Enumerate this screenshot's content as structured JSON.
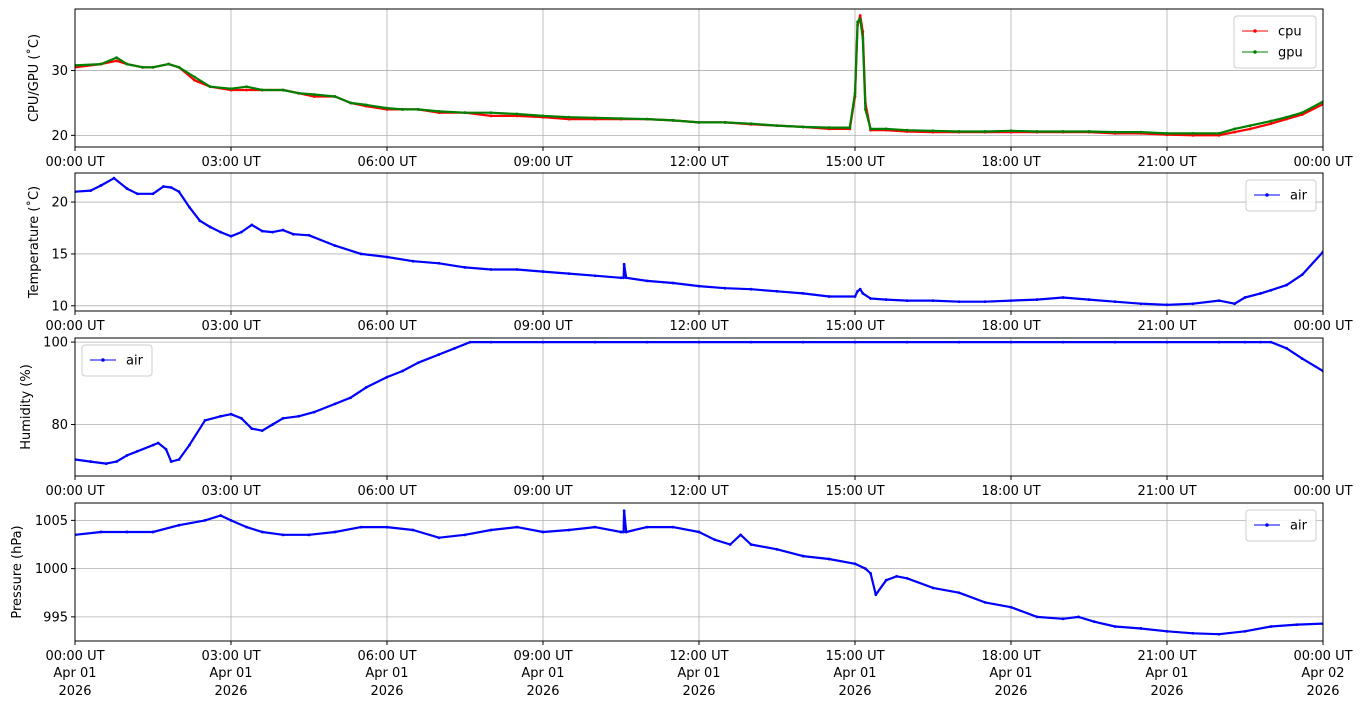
{
  "colors": {
    "cpu": "#ff0000",
    "gpu": "#008000",
    "air": "#0000ff",
    "grid": "#b0b0b0"
  },
  "chart_data": [
    {
      "type": "line",
      "ylabel": "CPU/GPU (˚C)",
      "ylim": [
        18.2,
        39.5
      ],
      "yticks": [
        20,
        30
      ],
      "grid": true,
      "legend_position": "top-right",
      "x_unit": "hours",
      "xlim": [
        0,
        24
      ],
      "series": [
        {
          "name": "cpu",
          "color": "#ff0000",
          "x": [
            0,
            0.5,
            0.8,
            1,
            1.3,
            1.5,
            1.8,
            2,
            2.3,
            2.6,
            3,
            3.3,
            3.6,
            4,
            4.3,
            4.6,
            5,
            5.3,
            5.6,
            6,
            6.3,
            6.6,
            7,
            7.5,
            8,
            8.5,
            9,
            9.5,
            10,
            10.5,
            11,
            11.5,
            12,
            12.5,
            13,
            13.5,
            14,
            14.5,
            14.9,
            15.0,
            15.05,
            15.1,
            15.15,
            15.2,
            15.3,
            15.6,
            16,
            16.5,
            17,
            17.5,
            18,
            18.5,
            19,
            19.5,
            20,
            20.5,
            21,
            21.5,
            22,
            22.3,
            22.6,
            23,
            23.3,
            23.6,
            24
          ],
          "y": [
            30.5,
            31,
            31.5,
            31,
            30.5,
            30.5,
            31,
            30.5,
            28.5,
            27.5,
            27,
            27,
            27,
            27,
            26.5,
            26,
            26,
            25,
            24.5,
            24,
            24,
            24,
            23.5,
            23.5,
            23,
            23,
            22.8,
            22.5,
            22.5,
            22.5,
            22.5,
            22.3,
            22,
            22,
            21.7,
            21.5,
            21.3,
            21,
            21,
            26,
            37,
            38.5,
            36,
            25,
            20.8,
            20.8,
            20.6,
            20.5,
            20.5,
            20.5,
            20.5,
            20.5,
            20.5,
            20.5,
            20.3,
            20.3,
            20.1,
            20,
            20,
            20.5,
            21,
            21.8,
            22.5,
            23.2,
            24.8
          ]
        },
        {
          "name": "gpu",
          "color": "#008000",
          "x": [
            0,
            0.5,
            0.8,
            1,
            1.3,
            1.5,
            1.8,
            2,
            2.3,
            2.6,
            3,
            3.3,
            3.6,
            4,
            4.3,
            4.6,
            5,
            5.3,
            5.6,
            6,
            6.3,
            6.6,
            7,
            7.5,
            8,
            8.5,
            9,
            9.5,
            10,
            10.5,
            11,
            11.5,
            12,
            12.5,
            13,
            13.5,
            14,
            14.5,
            14.9,
            15.0,
            15.05,
            15.1,
            15.15,
            15.2,
            15.3,
            15.6,
            16,
            16.5,
            17,
            17.5,
            18,
            18.5,
            19,
            19.5,
            20,
            20.5,
            21,
            21.5,
            22,
            22.3,
            22.6,
            23,
            23.3,
            23.6,
            24
          ],
          "y": [
            30.8,
            31,
            32,
            31,
            30.5,
            30.5,
            31,
            30.5,
            29,
            27.5,
            27.2,
            27.5,
            27,
            27,
            26.5,
            26.3,
            26,
            25,
            24.7,
            24.2,
            24,
            24,
            23.7,
            23.5,
            23.5,
            23.3,
            23,
            22.8,
            22.7,
            22.6,
            22.5,
            22.3,
            22,
            22,
            21.8,
            21.5,
            21.3,
            21.2,
            21.2,
            26.5,
            37.5,
            38,
            35,
            24,
            21,
            21,
            20.8,
            20.7,
            20.6,
            20.6,
            20.7,
            20.6,
            20.6,
            20.6,
            20.5,
            20.5,
            20.3,
            20.3,
            20.3,
            21,
            21.5,
            22.2,
            22.8,
            23.5,
            25.2
          ]
        }
      ]
    },
    {
      "type": "line",
      "ylabel": "Temperature (˚C)",
      "ylim": [
        9.5,
        22.8
      ],
      "yticks": [
        10,
        15,
        20
      ],
      "grid": true,
      "legend_position": "top-right",
      "x_unit": "hours",
      "xlim": [
        0,
        24
      ],
      "series": [
        {
          "name": "air",
          "color": "#0000ff",
          "x": [
            0,
            0.3,
            0.5,
            0.75,
            1,
            1.2,
            1.5,
            1.7,
            1.85,
            2,
            2.2,
            2.4,
            2.6,
            2.8,
            3,
            3.2,
            3.4,
            3.6,
            3.8,
            4,
            4.2,
            4.5,
            5,
            5.5,
            6,
            6.5,
            7,
            7.5,
            8,
            8.5,
            9,
            9.5,
            10,
            10.5,
            10.55,
            10.56,
            10.6,
            11,
            11.5,
            12,
            12.5,
            13,
            13.5,
            14,
            14.5,
            15,
            15.05,
            15.1,
            15.15,
            15.3,
            15.6,
            16,
            16.5,
            17,
            17.5,
            18,
            18.5,
            19,
            19.5,
            20,
            20.5,
            21,
            21.5,
            22,
            22.3,
            22.5,
            22.8,
            23,
            23.3,
            23.6,
            24
          ],
          "y": [
            21,
            21.1,
            21.6,
            22.3,
            21.3,
            20.8,
            20.8,
            21.5,
            21.4,
            21,
            19.5,
            18.2,
            17.6,
            17.1,
            16.7,
            17.1,
            17.8,
            17.2,
            17.1,
            17.3,
            16.9,
            16.8,
            15.8,
            15,
            14.7,
            14.3,
            14.1,
            13.7,
            13.5,
            13.5,
            13.3,
            13.1,
            12.9,
            12.7,
            12.7,
            14,
            12.7,
            12.4,
            12.2,
            11.9,
            11.7,
            11.6,
            11.4,
            11.2,
            10.9,
            10.9,
            11.4,
            11.6,
            11.2,
            10.7,
            10.6,
            10.5,
            10.5,
            10.4,
            10.4,
            10.5,
            10.6,
            10.8,
            10.6,
            10.4,
            10.2,
            10.1,
            10.2,
            10.5,
            10.2,
            10.8,
            11.2,
            11.5,
            12,
            13,
            15.2
          ]
        }
      ]
    },
    {
      "type": "line",
      "ylabel": "Humidity (%)",
      "ylim": [
        67.5,
        101
      ],
      "yticks": [
        80,
        100
      ],
      "grid": true,
      "legend_position": "top-left",
      "x_unit": "hours",
      "xlim": [
        0,
        24
      ],
      "series": [
        {
          "name": "air",
          "color": "#0000ff",
          "x": [
            0,
            0.3,
            0.6,
            0.8,
            1,
            1.2,
            1.5,
            1.6,
            1.75,
            1.85,
            2,
            2.2,
            2.5,
            2.8,
            3,
            3.2,
            3.4,
            3.6,
            3.8,
            4,
            4.3,
            4.6,
            5,
            5.3,
            5.6,
            6,
            6.3,
            6.6,
            7,
            7.3,
            7.6,
            8,
            9,
            10,
            11,
            12,
            13,
            14,
            15,
            16,
            17,
            18,
            19,
            20,
            21,
            22,
            22.5,
            22.8,
            23,
            23.3,
            23.6,
            24
          ],
          "y": [
            71.5,
            71,
            70.5,
            71,
            72.5,
            73.5,
            75,
            75.5,
            74,
            71,
            71.5,
            75,
            81,
            82,
            82.5,
            81.5,
            79,
            78.5,
            80,
            81.5,
            82,
            83,
            85,
            86.5,
            89,
            91.5,
            93,
            95,
            97,
            98.5,
            100,
            100,
            100,
            100,
            100,
            100,
            100,
            100,
            100,
            100,
            100,
            100,
            100,
            100,
            100,
            100,
            100,
            100,
            100,
            98.5,
            96,
            93
          ]
        }
      ]
    },
    {
      "type": "line",
      "ylabel": "Pressure (hPa)",
      "ylim": [
        992.5,
        1006.8
      ],
      "yticks": [
        995,
        1000,
        1005
      ],
      "grid": true,
      "legend_position": "top-right",
      "x_unit": "hours",
      "xlim": [
        0,
        24
      ],
      "series": [
        {
          "name": "air",
          "color": "#0000ff",
          "x": [
            0,
            0.5,
            1,
            1.5,
            2,
            2.5,
            2.8,
            3,
            3.3,
            3.6,
            4,
            4.5,
            5,
            5.5,
            6,
            6.5,
            7,
            7.5,
            8,
            8.5,
            9,
            9.5,
            10,
            10.5,
            10.55,
            10.56,
            10.6,
            11,
            11.5,
            12,
            12.3,
            12.6,
            12.8,
            13,
            13.5,
            14,
            14.5,
            15,
            15.2,
            15.3,
            15.4,
            15.6,
            15.8,
            16,
            16.5,
            17,
            17.5,
            18,
            18.5,
            19,
            19.3,
            19.6,
            20,
            20.5,
            21,
            21.5,
            22,
            22.5,
            23,
            23.5,
            24
          ],
          "y": [
            1003.5,
            1003.8,
            1003.8,
            1003.8,
            1004.5,
            1005,
            1005.5,
            1005,
            1004.3,
            1003.8,
            1003.5,
            1003.5,
            1003.8,
            1004.3,
            1004.3,
            1004,
            1003.2,
            1003.5,
            1004,
            1004.3,
            1003.8,
            1004,
            1004.3,
            1003.8,
            1003.8,
            1006,
            1003.8,
            1004.3,
            1004.3,
            1003.8,
            1003,
            1002.5,
            1003.5,
            1002.5,
            1002,
            1001.3,
            1001,
            1000.5,
            1000,
            999.5,
            997.3,
            998.8,
            999.2,
            999,
            998,
            997.5,
            996.5,
            996,
            995,
            994.8,
            995,
            994.5,
            994,
            993.8,
            993.5,
            993.3,
            993.2,
            993.5,
            994,
            994.2,
            994.3
          ]
        }
      ]
    }
  ],
  "x_axis": {
    "tick_hours": [
      0,
      3,
      6,
      9,
      12,
      15,
      18,
      21,
      24
    ],
    "labels": [
      "00:00 UT",
      "03:00 UT",
      "06:00 UT",
      "09:00 UT",
      "12:00 UT",
      "15:00 UT",
      "18:00 UT",
      "21:00 UT",
      "00:00 UT"
    ],
    "date_line1": [
      "Apr 01",
      "Apr 01",
      "Apr 01",
      "Apr 01",
      "Apr 01",
      "Apr 01",
      "Apr 01",
      "Apr 01",
      "Apr 02"
    ],
    "date_line2": [
      "2026",
      "2026",
      "2026",
      "2026",
      "2026",
      "2026",
      "2026",
      "2026",
      "2026"
    ]
  }
}
